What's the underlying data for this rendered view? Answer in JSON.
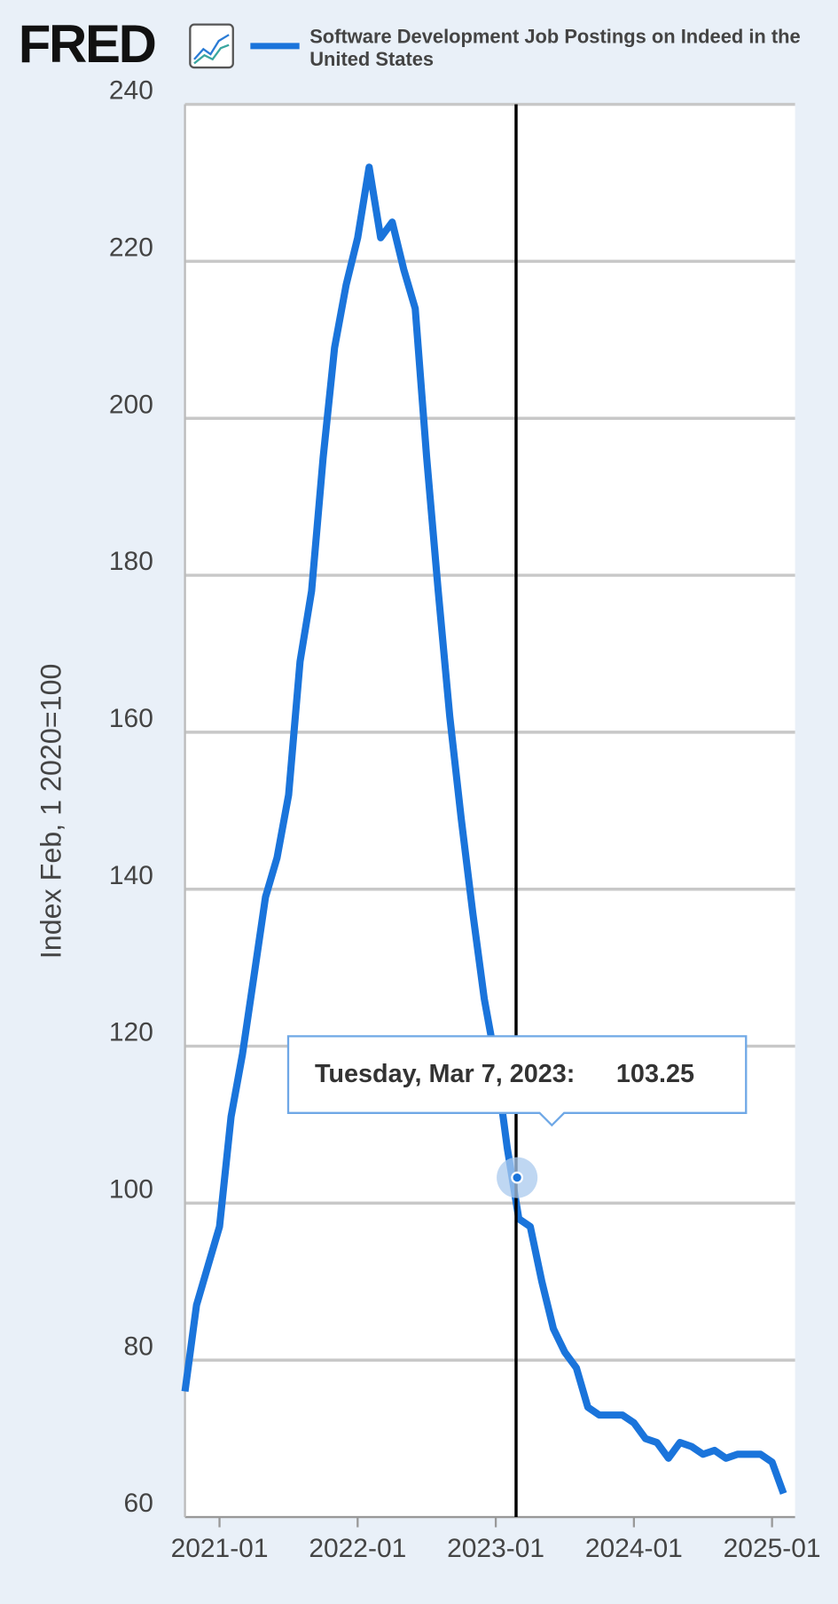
{
  "logo": "FRED",
  "chart_data": {
    "type": "line",
    "y_label": "Index Feb, 1 2020=100",
    "x": [
      "2020-10",
      "2020-11",
      "2020-12",
      "2021-01",
      "2021-02",
      "2021-03",
      "2021-04",
      "2021-05",
      "2021-06",
      "2021-07",
      "2021-08",
      "2021-09",
      "2021-10",
      "2021-11",
      "2021-12",
      "2022-01",
      "2022-02",
      "2022-03",
      "2022-04",
      "2022-05",
      "2022-06",
      "2022-07",
      "2022-08",
      "2022-09",
      "2022-10",
      "2022-11",
      "2022-12",
      "2023-01",
      "2023-02",
      "2023-03",
      "2023-04",
      "2023-05",
      "2023-06",
      "2023-07",
      "2023-08",
      "2023-09",
      "2023-10",
      "2023-11",
      "2023-12",
      "2024-01",
      "2024-02",
      "2024-03",
      "2024-04",
      "2024-05",
      "2024-06",
      "2024-07",
      "2024-08",
      "2024-09",
      "2024-10",
      "2024-11",
      "2024-12",
      "2025-01",
      "2025-02"
    ],
    "series": [
      {
        "name": "Software Development Job Postings on Indeed in the United States",
        "color": "#1a74db",
        "values": [
          76,
          87,
          92,
          97,
          111,
          119,
          129,
          139,
          144,
          152,
          169,
          178,
          195,
          209,
          217,
          223,
          232,
          223,
          225,
          219,
          214,
          195,
          178,
          162,
          149,
          137,
          126,
          118,
          107,
          98,
          97,
          90,
          84,
          81,
          79,
          74,
          73,
          73,
          73,
          72,
          70,
          69.5,
          67.5,
          69.5,
          69,
          68,
          68.5,
          67.5,
          68,
          68,
          68,
          67,
          63
        ]
      }
    ],
    "xlim": [
      "2020-10",
      "2025-03"
    ],
    "xticks": [
      "2021-01",
      "2022-01",
      "2023-01",
      "2024-01",
      "2025-01"
    ],
    "ylim": [
      60,
      240
    ],
    "yticks": [
      60,
      80,
      100,
      120,
      140,
      160,
      180,
      200,
      220,
      240
    ],
    "grid": true,
    "tooltip": {
      "text": "Tuesday, Mar 7, 2023:",
      "value": 103.25
    }
  }
}
